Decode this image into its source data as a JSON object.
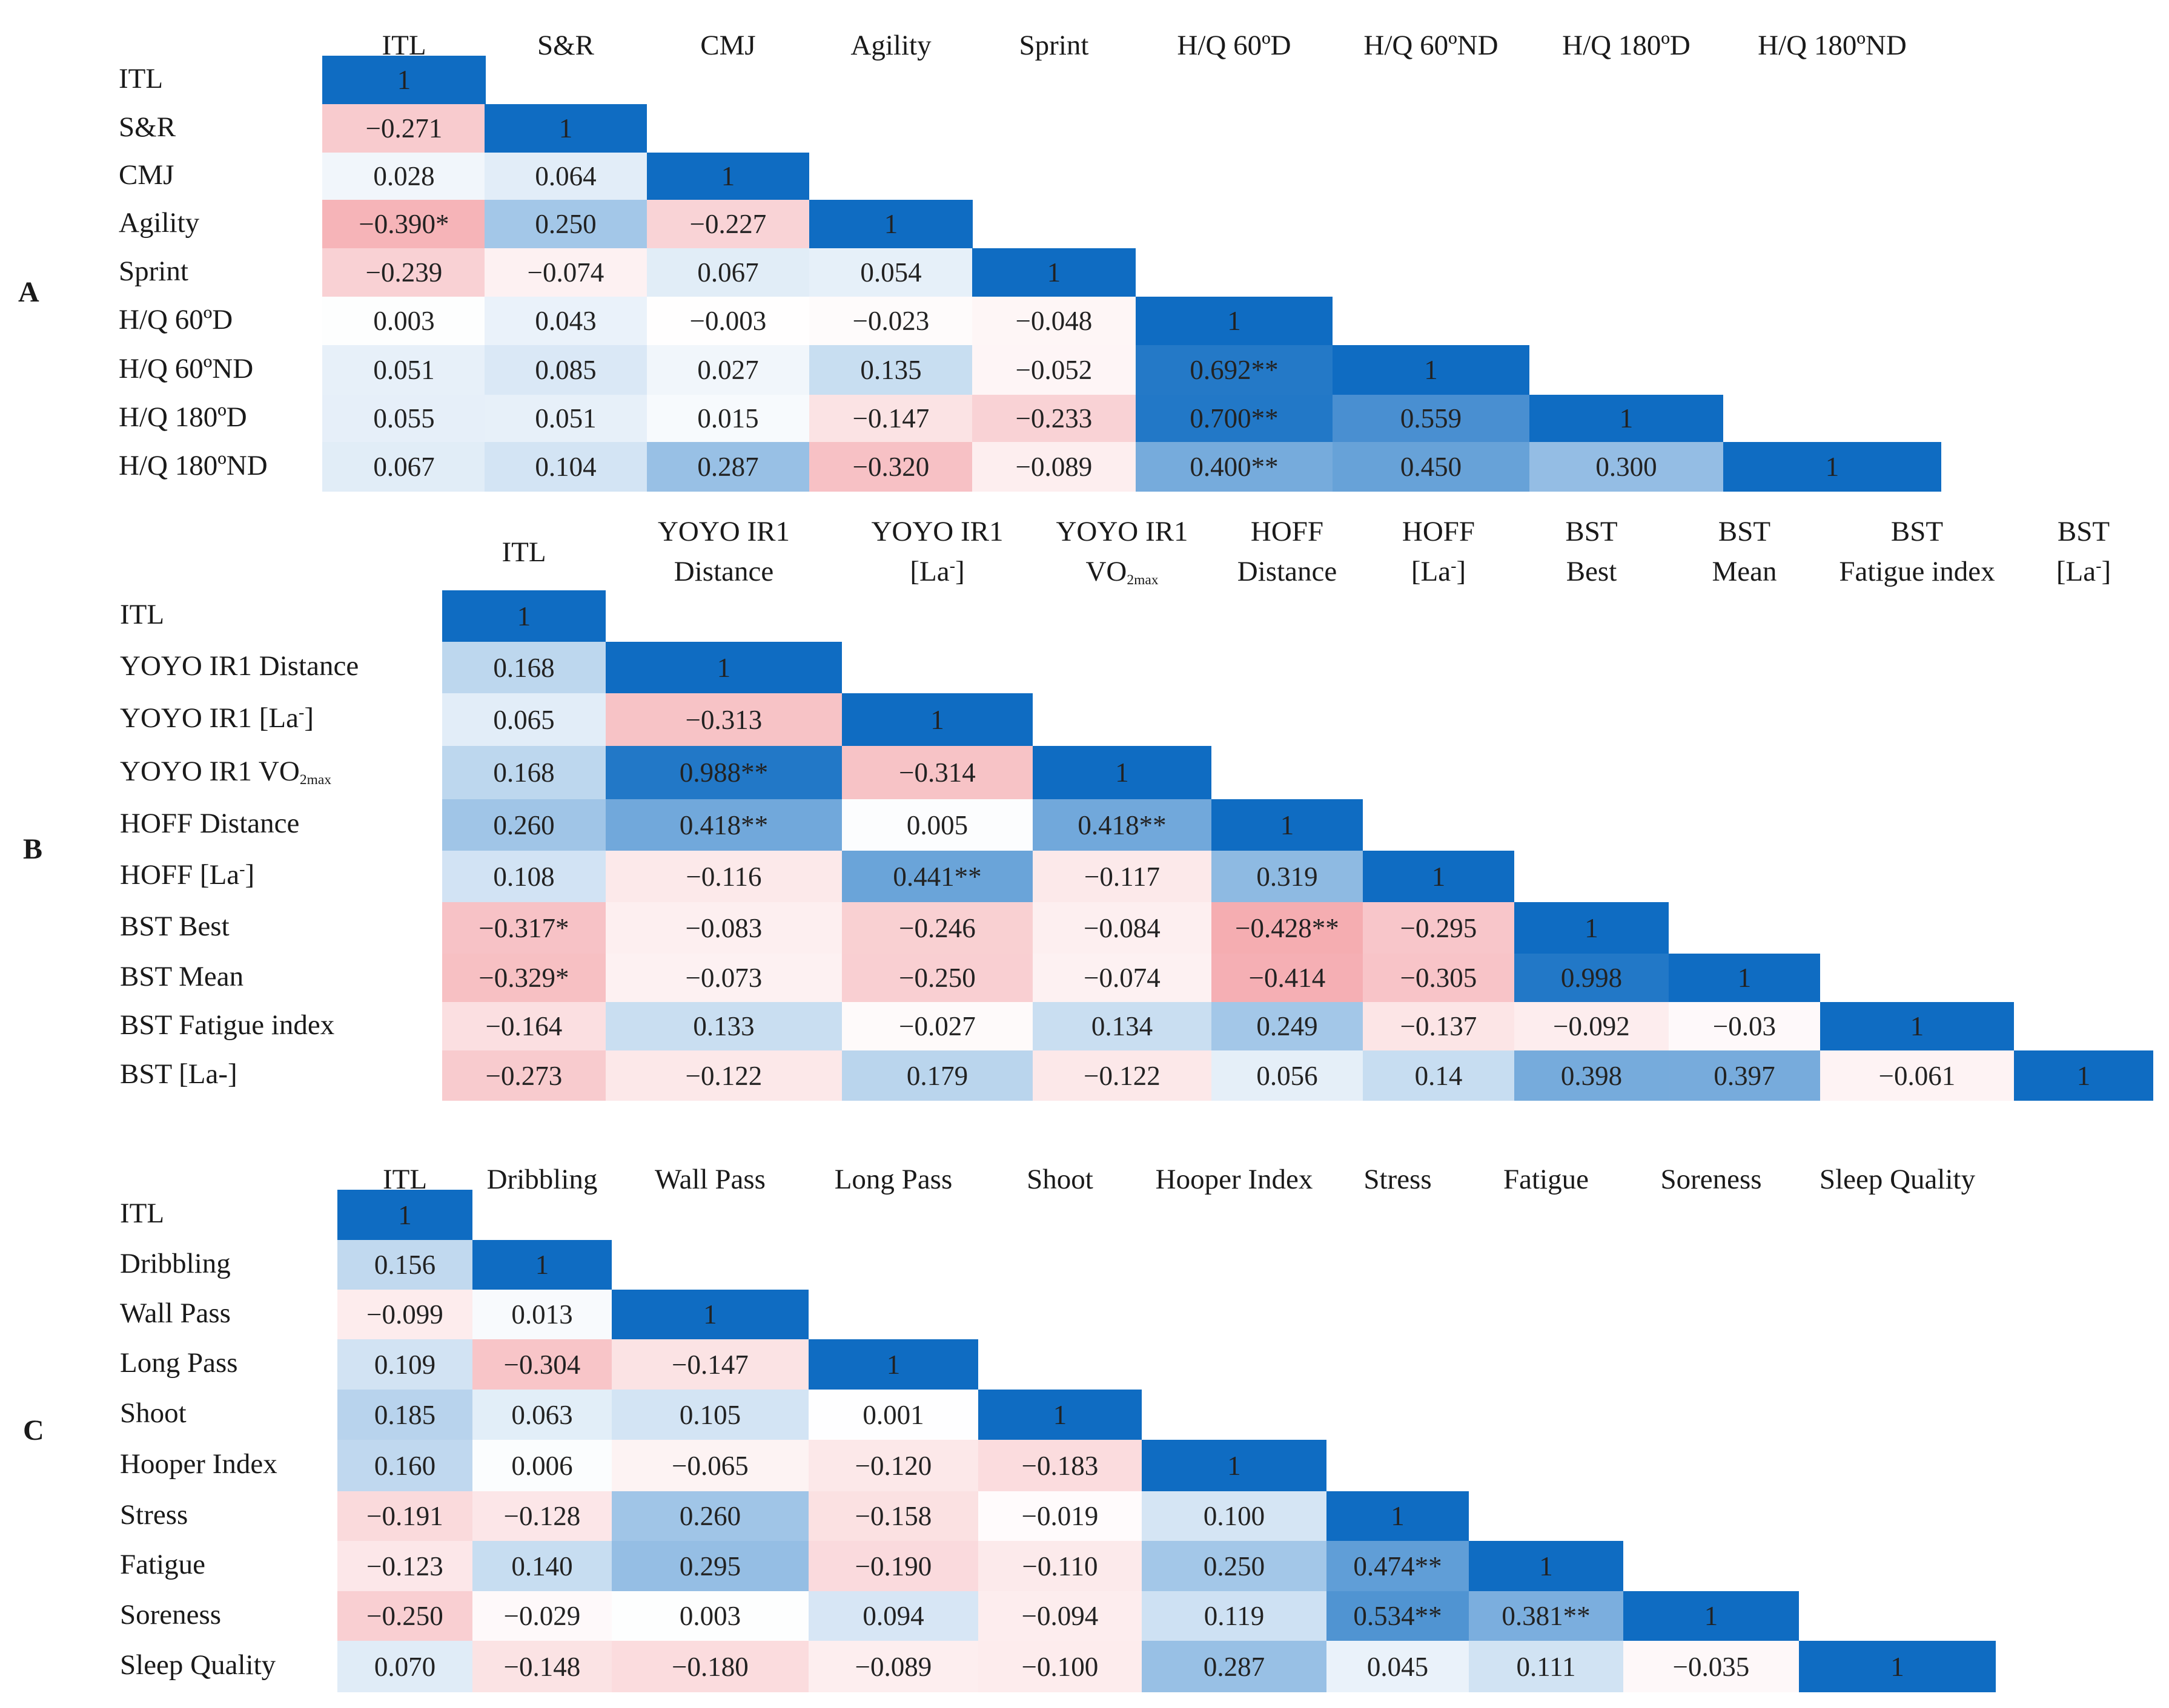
{
  "colors": {
    "positive_max": "#0f6cc2",
    "negative_max": "#f4a8ad",
    "neutral": "#ffffff"
  },
  "chart_data": [
    {
      "type": "heatmap",
      "panel": "A",
      "columns": [
        "ITL",
        "S&R",
        "CMJ",
        "Agility",
        "Sprint",
        "H/Q 60ºD",
        "H/Q 60ºND",
        "H/Q 180ºD",
        "H/Q 180ºND"
      ],
      "rows": [
        "ITL",
        "S&R",
        "CMJ",
        "Agility",
        "Sprint",
        "H/Q 60ºD",
        "H/Q 60ºND",
        "H/Q 180ºD",
        "H/Q 180ºND"
      ],
      "cells": [
        [
          {
            "v": 1,
            "t": "1"
          }
        ],
        [
          {
            "v": -0.271,
            "t": "−0.271"
          },
          {
            "v": 1,
            "t": "1"
          }
        ],
        [
          {
            "v": 0.028,
            "t": "0.028"
          },
          {
            "v": 0.064,
            "t": "0.064"
          },
          {
            "v": 1,
            "t": "1"
          }
        ],
        [
          {
            "v": -0.39,
            "t": "−0.390*"
          },
          {
            "v": 0.25,
            "t": "0.250"
          },
          {
            "v": -0.227,
            "t": "−0.227"
          },
          {
            "v": 1,
            "t": "1"
          }
        ],
        [
          {
            "v": -0.239,
            "t": "−0.239"
          },
          {
            "v": -0.074,
            "t": "−0.074"
          },
          {
            "v": 0.067,
            "t": "0.067"
          },
          {
            "v": 0.054,
            "t": "0.054"
          },
          {
            "v": 1,
            "t": "1"
          }
        ],
        [
          {
            "v": 0.003,
            "t": "0.003"
          },
          {
            "v": 0.043,
            "t": "0.043"
          },
          {
            "v": -0.003,
            "t": "−0.003"
          },
          {
            "v": -0.023,
            "t": "−0.023"
          },
          {
            "v": -0.048,
            "t": "−0.048"
          },
          {
            "v": 1,
            "t": "1"
          }
        ],
        [
          {
            "v": 0.051,
            "t": "0.051"
          },
          {
            "v": 0.085,
            "t": "0.085"
          },
          {
            "v": 0.027,
            "t": "0.027"
          },
          {
            "v": 0.135,
            "t": "0.135"
          },
          {
            "v": -0.052,
            "t": "−0.052"
          },
          {
            "v": 0.692,
            "t": "0.692**"
          },
          {
            "v": 1,
            "t": "1"
          }
        ],
        [
          {
            "v": 0.055,
            "t": "0.055"
          },
          {
            "v": 0.051,
            "t": "0.051"
          },
          {
            "v": 0.015,
            "t": "0.015"
          },
          {
            "v": -0.147,
            "t": "−0.147"
          },
          {
            "v": -0.233,
            "t": "−0.233"
          },
          {
            "v": 0.7,
            "t": "0.700**"
          },
          {
            "v": 0.559,
            "t": "0.559"
          },
          {
            "v": 1,
            "t": "1"
          }
        ],
        [
          {
            "v": 0.067,
            "t": "0.067"
          },
          {
            "v": 0.104,
            "t": "0.104"
          },
          {
            "v": 0.287,
            "t": "0.287"
          },
          {
            "v": -0.32,
            "t": "−0.320"
          },
          {
            "v": -0.089,
            "t": "−0.089"
          },
          {
            "v": 0.4,
            "t": "0.400**"
          },
          {
            "v": 0.45,
            "t": "0.450"
          },
          {
            "v": 0.3,
            "t": "0.300"
          },
          {
            "v": 1,
            "t": "1"
          }
        ]
      ]
    },
    {
      "type": "heatmap",
      "panel": "B",
      "columns": [
        [
          "ITL"
        ],
        [
          "YOYO IR1",
          "Distance"
        ],
        [
          "YOYO IR1",
          "[La⁻]"
        ],
        [
          "YOYO IR1",
          "VO2max"
        ],
        [
          "HOFF",
          "Distance"
        ],
        [
          "HOFF",
          "[La⁻]"
        ],
        [
          "BST",
          "Best"
        ],
        [
          "BST",
          "Mean"
        ],
        [
          "BST",
          "Fatigue index"
        ],
        [
          "BST",
          "[La⁻]"
        ]
      ],
      "rows": [
        "ITL",
        "YOYO IR1 Distance",
        "YOYO IR1 [La⁻]",
        "YOYO IR1 VO2max",
        "HOFF Distance",
        "HOFF [La⁻]",
        "BST Best",
        "BST Mean",
        "BST Fatigue index",
        "BST [La-]"
      ],
      "cells": [
        [
          {
            "v": 1,
            "t": "1"
          }
        ],
        [
          {
            "v": 0.168,
            "t": "0.168"
          },
          {
            "v": 1,
            "t": "1"
          }
        ],
        [
          {
            "v": 0.065,
            "t": "0.065"
          },
          {
            "v": -0.313,
            "t": "−0.313"
          },
          {
            "v": 1,
            "t": "1"
          }
        ],
        [
          {
            "v": 0.168,
            "t": "0.168"
          },
          {
            "v": 0.988,
            "t": "0.988**"
          },
          {
            "v": -0.314,
            "t": "−0.314"
          },
          {
            "v": 1,
            "t": "1"
          }
        ],
        [
          {
            "v": 0.26,
            "t": "0.260"
          },
          {
            "v": 0.418,
            "t": "0.418**"
          },
          {
            "v": 0.005,
            "t": "0.005"
          },
          {
            "v": 0.418,
            "t": "0.418**"
          },
          {
            "v": 1,
            "t": "1"
          }
        ],
        [
          {
            "v": 0.108,
            "t": "0.108"
          },
          {
            "v": -0.116,
            "t": "−0.116"
          },
          {
            "v": 0.441,
            "t": "0.441**"
          },
          {
            "v": -0.117,
            "t": "−0.117"
          },
          {
            "v": 0.319,
            "t": "0.319"
          },
          {
            "v": 1,
            "t": "1"
          }
        ],
        [
          {
            "v": -0.317,
            "t": "−0.317*"
          },
          {
            "v": -0.083,
            "t": "−0.083"
          },
          {
            "v": -0.246,
            "t": "−0.246"
          },
          {
            "v": -0.084,
            "t": "−0.084"
          },
          {
            "v": -0.428,
            "t": "−0.428**"
          },
          {
            "v": -0.295,
            "t": "−0.295"
          },
          {
            "v": 1,
            "t": "1"
          }
        ],
        [
          {
            "v": -0.329,
            "t": "−0.329*"
          },
          {
            "v": -0.073,
            "t": "−0.073"
          },
          {
            "v": -0.25,
            "t": "−0.250"
          },
          {
            "v": -0.074,
            "t": "−0.074"
          },
          {
            "v": -0.414,
            "t": "−0.414"
          },
          {
            "v": -0.305,
            "t": "−0.305"
          },
          {
            "v": 0.998,
            "t": "0.998"
          },
          {
            "v": 1,
            "t": "1"
          }
        ],
        [
          {
            "v": -0.164,
            "t": "−0.164"
          },
          {
            "v": 0.133,
            "t": "0.133"
          },
          {
            "v": -0.027,
            "t": "−0.027"
          },
          {
            "v": 0.134,
            "t": "0.134"
          },
          {
            "v": 0.249,
            "t": "0.249"
          },
          {
            "v": -0.137,
            "t": "−0.137"
          },
          {
            "v": -0.092,
            "t": "−0.092"
          },
          {
            "v": -0.03,
            "t": "−0.03"
          },
          {
            "v": 1,
            "t": "1"
          }
        ],
        [
          {
            "v": -0.273,
            "t": "−0.273"
          },
          {
            "v": -0.122,
            "t": "−0.122"
          },
          {
            "v": 0.179,
            "t": "0.179"
          },
          {
            "v": -0.122,
            "t": "−0.122"
          },
          {
            "v": 0.056,
            "t": "0.056"
          },
          {
            "v": 0.14,
            "t": "0.14"
          },
          {
            "v": 0.398,
            "t": "0.398"
          },
          {
            "v": 0.397,
            "t": "0.397"
          },
          {
            "v": -0.061,
            "t": "−0.061"
          },
          {
            "v": 1,
            "t": "1"
          }
        ]
      ]
    },
    {
      "type": "heatmap",
      "panel": "C",
      "columns": [
        "ITL",
        "Dribbling",
        "Wall Pass",
        "Long Pass",
        "Shoot",
        "Hooper Index",
        "Stress",
        "Fatigue",
        "Soreness",
        "Sleep Quality"
      ],
      "rows": [
        "ITL",
        "Dribbling",
        "Wall Pass",
        "Long Pass",
        "Shoot",
        "Hooper Index",
        "Stress",
        "Fatigue",
        "Soreness",
        "Sleep Quality"
      ],
      "cells": [
        [
          {
            "v": 1,
            "t": "1"
          }
        ],
        [
          {
            "v": 0.156,
            "t": "0.156"
          },
          {
            "v": 1,
            "t": "1"
          }
        ],
        [
          {
            "v": -0.099,
            "t": "−0.099"
          },
          {
            "v": 0.013,
            "t": "0.013"
          },
          {
            "v": 1,
            "t": "1"
          }
        ],
        [
          {
            "v": 0.109,
            "t": "0.109"
          },
          {
            "v": -0.304,
            "t": "−0.304"
          },
          {
            "v": -0.147,
            "t": "−0.147"
          },
          {
            "v": 1,
            "t": "1"
          }
        ],
        [
          {
            "v": 0.185,
            "t": "0.185"
          },
          {
            "v": 0.063,
            "t": "0.063"
          },
          {
            "v": 0.105,
            "t": "0.105"
          },
          {
            "v": 0.001,
            "t": "0.001"
          },
          {
            "v": 1,
            "t": "1"
          }
        ],
        [
          {
            "v": 0.16,
            "t": "0.160"
          },
          {
            "v": 0.006,
            "t": "0.006"
          },
          {
            "v": -0.065,
            "t": "−0.065"
          },
          {
            "v": -0.12,
            "t": "−0.120"
          },
          {
            "v": -0.183,
            "t": "−0.183"
          },
          {
            "v": 1,
            "t": "1"
          }
        ],
        [
          {
            "v": -0.191,
            "t": "−0.191"
          },
          {
            "v": -0.128,
            "t": "−0.128"
          },
          {
            "v": 0.26,
            "t": "0.260"
          },
          {
            "v": -0.158,
            "t": "−0.158"
          },
          {
            "v": -0.019,
            "t": "−0.019"
          },
          {
            "v": 0.1,
            "t": "0.100"
          },
          {
            "v": 1,
            "t": "1"
          }
        ],
        [
          {
            "v": -0.123,
            "t": "−0.123"
          },
          {
            "v": 0.14,
            "t": "0.140"
          },
          {
            "v": 0.295,
            "t": "0.295"
          },
          {
            "v": -0.19,
            "t": "−0.190"
          },
          {
            "v": -0.11,
            "t": "−0.110"
          },
          {
            "v": 0.25,
            "t": "0.250"
          },
          {
            "v": 0.474,
            "t": "0.474**"
          },
          {
            "v": 1,
            "t": "1"
          }
        ],
        [
          {
            "v": -0.25,
            "t": "−0.250"
          },
          {
            "v": -0.029,
            "t": "−0.029"
          },
          {
            "v": 0.003,
            "t": "0.003"
          },
          {
            "v": 0.094,
            "t": "0.094"
          },
          {
            "v": -0.094,
            "t": "−0.094"
          },
          {
            "v": 0.119,
            "t": "0.119"
          },
          {
            "v": 0.534,
            "t": "0.534**"
          },
          {
            "v": 0.381,
            "t": "0.381**"
          },
          {
            "v": 1,
            "t": "1"
          }
        ],
        [
          {
            "v": 0.07,
            "t": "0.070"
          },
          {
            "v": -0.148,
            "t": "−0.148"
          },
          {
            "v": -0.18,
            "t": "−0.180"
          },
          {
            "v": -0.089,
            "t": "−0.089"
          },
          {
            "v": -0.1,
            "t": "−0.100"
          },
          {
            "v": 0.287,
            "t": "0.287"
          },
          {
            "v": 0.045,
            "t": "0.045"
          },
          {
            "v": 0.111,
            "t": "0.111"
          },
          {
            "v": -0.035,
            "t": "−0.035"
          },
          {
            "v": 1,
            "t": "1"
          }
        ]
      ]
    }
  ]
}
